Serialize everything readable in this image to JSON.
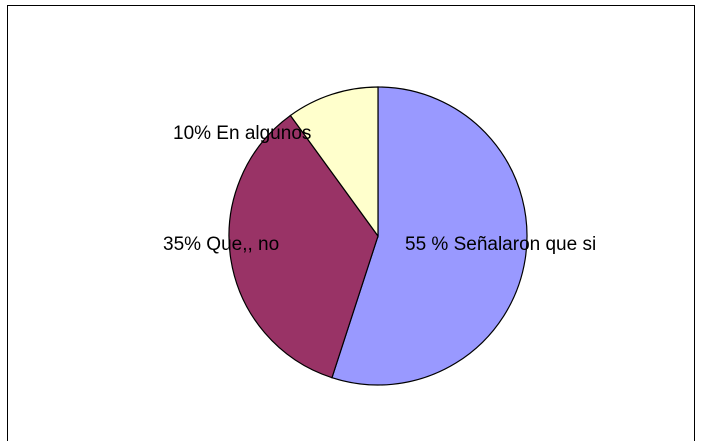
{
  "chart_data": {
    "type": "pie",
    "slices": [
      {
        "label": "55 % Señalaron que si",
        "value": 55,
        "color": "#9999ff"
      },
      {
        "label": "35% Que,, no",
        "value": 35,
        "color": "#993366"
      },
      {
        "label": "10% En algunos",
        "value": 10,
        "color": "#ffffcc"
      }
    ],
    "start_angle_deg": 0,
    "direction": "clockwise",
    "legend": "none"
  }
}
